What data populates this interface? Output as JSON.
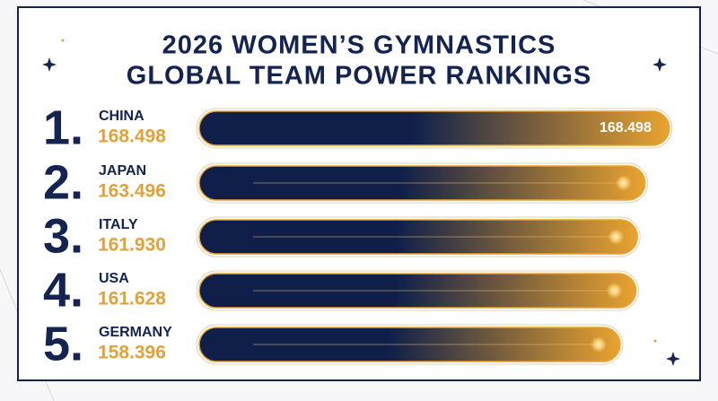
{
  "chart_data": {
    "type": "bar",
    "orientation": "horizontal",
    "title_lines": [
      "2026 WOMEN’S GYMNASTICS",
      "GLOBAL TEAM POWER RANKINGS"
    ],
    "ranks": [
      "1.",
      "2.",
      "3.",
      "4.",
      "5."
    ],
    "categories": [
      "CHINA",
      "JAPAN",
      "ITALY",
      "USA",
      "GERMANY"
    ],
    "values": [
      168.498,
      163.496,
      161.93,
      161.628,
      158.396
    ],
    "value_labels": [
      "168.498",
      "163.496",
      "161.930",
      "161.628",
      "158.396"
    ],
    "label_on_bar": [
      true,
      false,
      false,
      false,
      false
    ],
    "xlim": [
      72,
      170
    ],
    "bar_color_start": "#0f1f4a",
    "bar_color_end": "#e9a32f",
    "text_color": "#14234f",
    "score_color": "#e3a13a"
  }
}
